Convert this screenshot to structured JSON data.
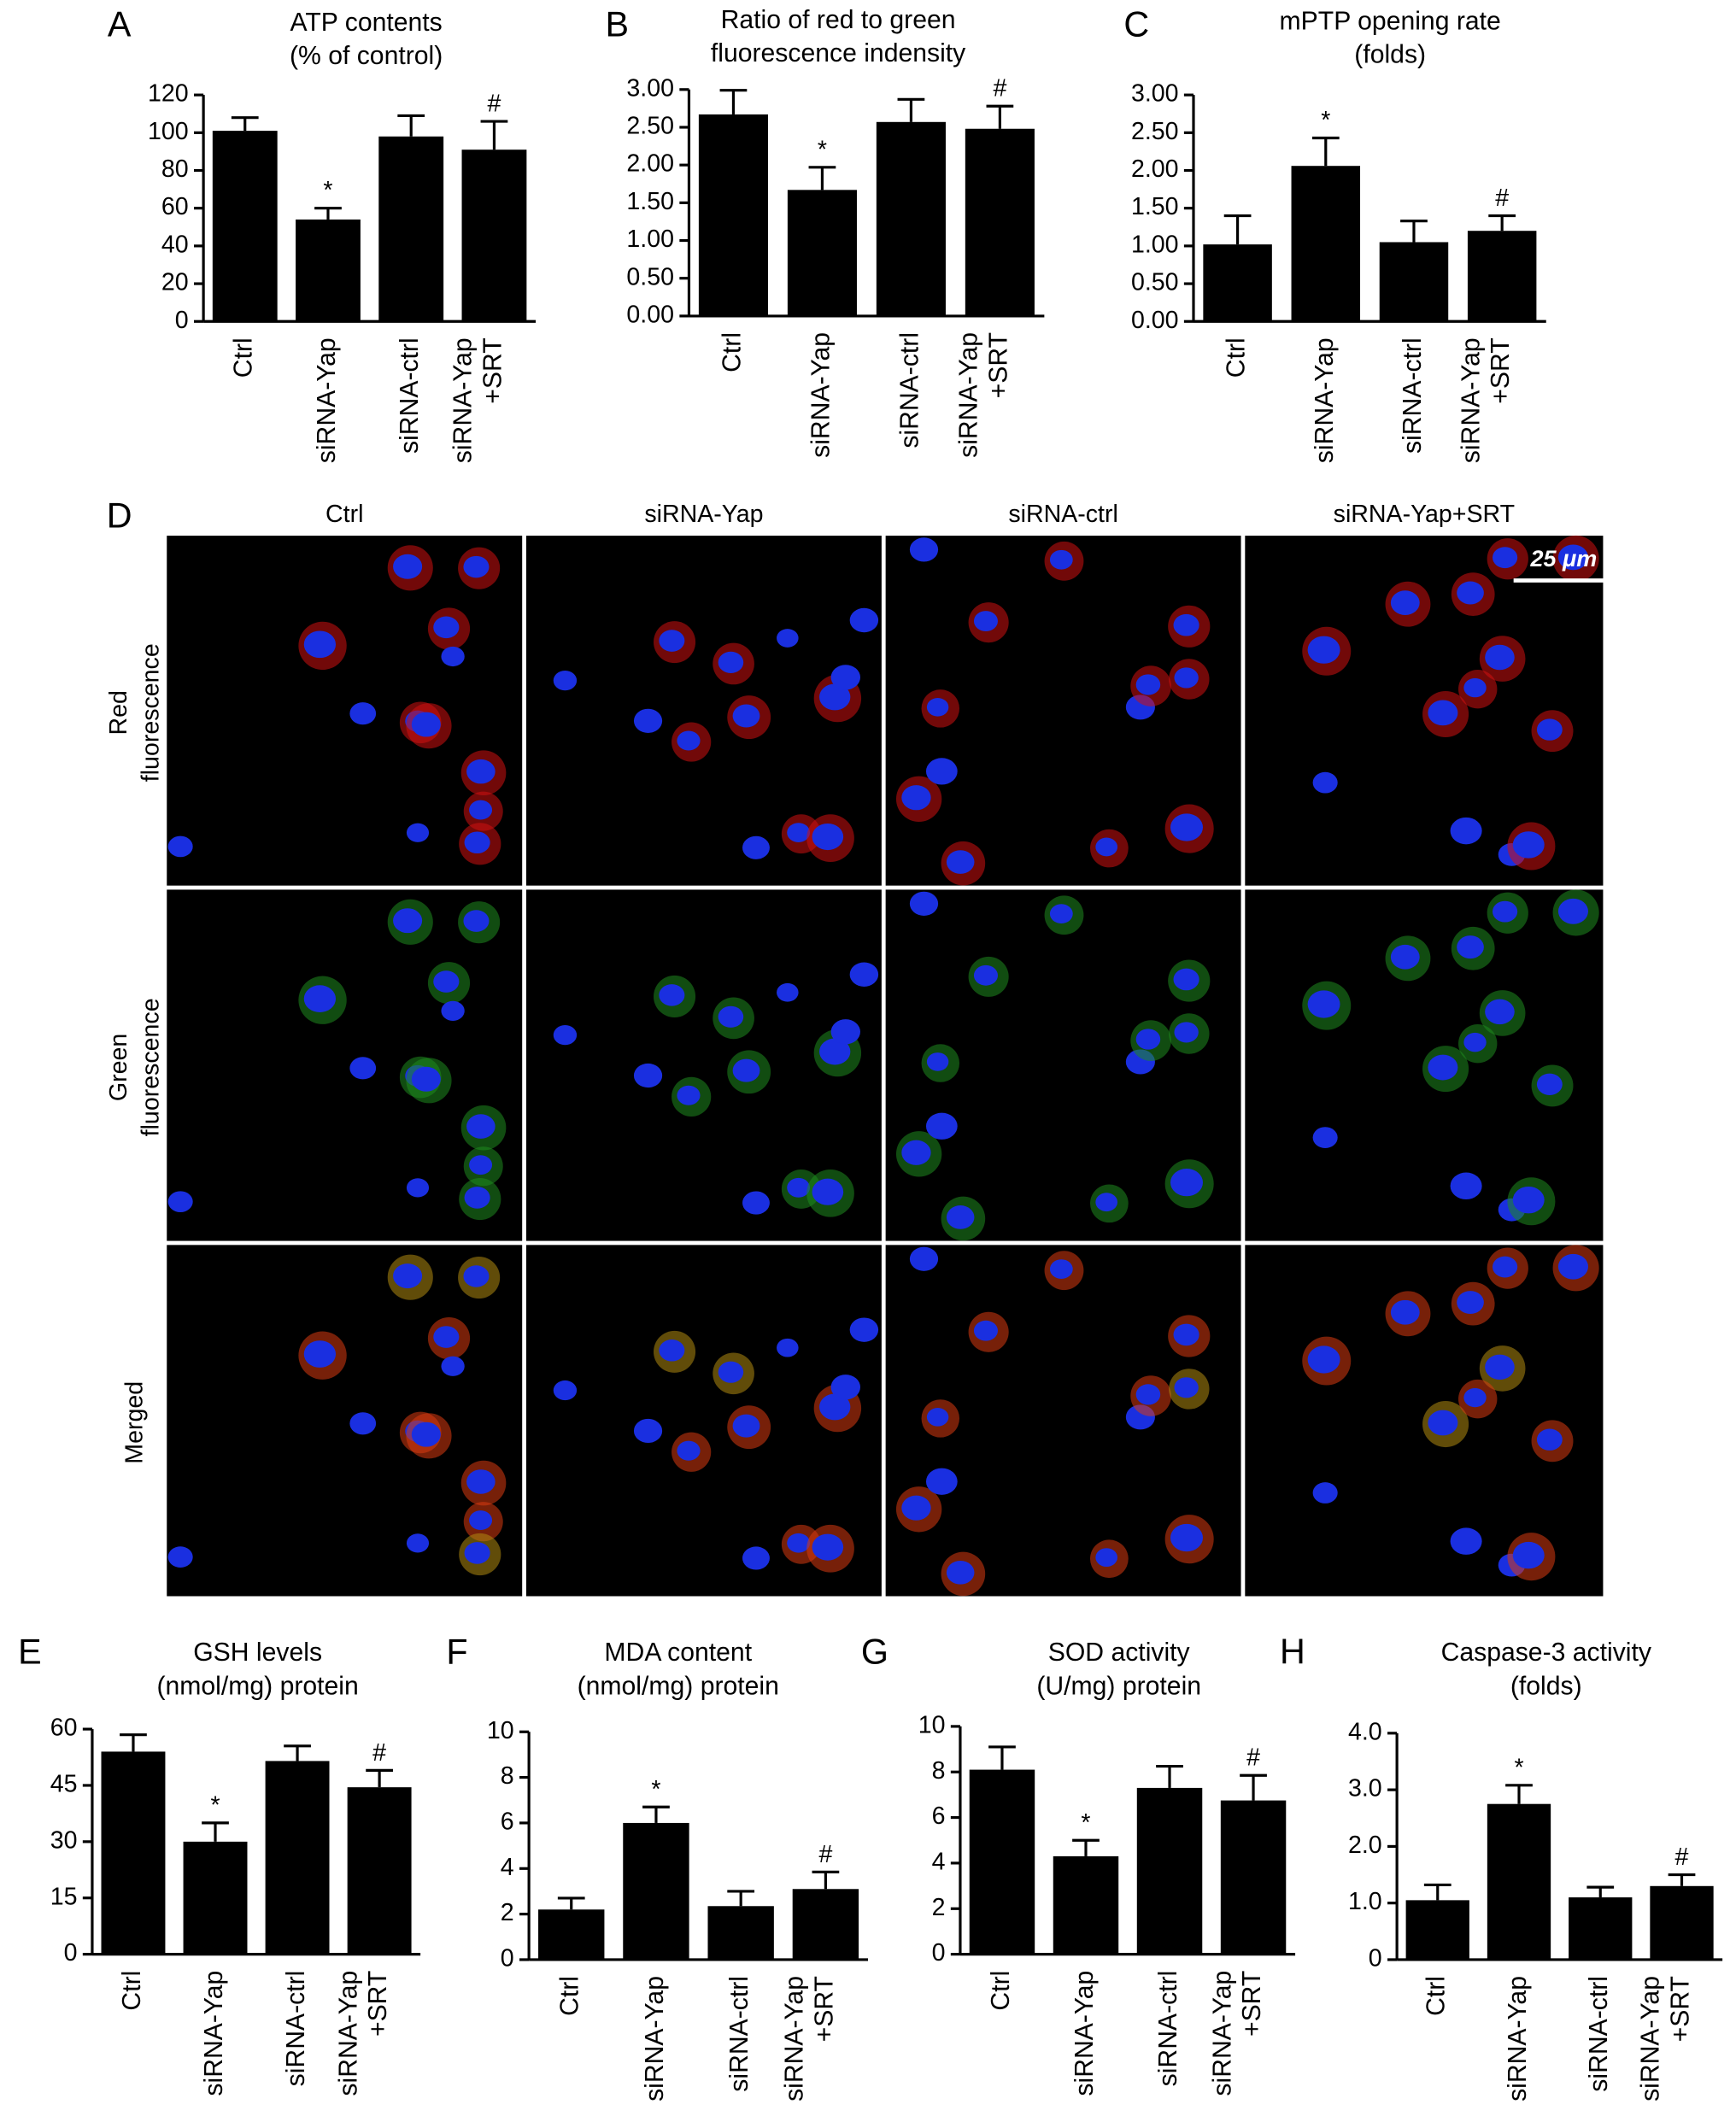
{
  "chart_data": [
    {
      "type": "bar",
      "panel": "A",
      "title": "ATP contents\n(% of control)",
      "categories": [
        "Ctrl",
        "siRNA-Yap",
        "siRNA-ctrl",
        "siRNA-Yap\n+SRT"
      ],
      "values": [
        101,
        54,
        98,
        91
      ],
      "errors": [
        7,
        6,
        11,
        15
      ],
      "annotations": [
        null,
        "*",
        null,
        "#"
      ],
      "color": "#000000",
      "ylim": [
        0,
        120
      ],
      "yticks": [
        0,
        20,
        40,
        60,
        80,
        100,
        120
      ]
    },
    {
      "type": "bar",
      "panel": "B",
      "title": "Ratio of red to green\nfluorescence indensity",
      "categories": [
        "Ctrl",
        "siRNA-Yap",
        "siRNA-ctrl",
        "siRNA-Yap\n+SRT"
      ],
      "values": [
        2.67,
        1.67,
        2.57,
        2.48
      ],
      "errors": [
        0.32,
        0.3,
        0.3,
        0.3
      ],
      "annotations": [
        null,
        "*",
        null,
        "#"
      ],
      "color": "#000000",
      "ylim": [
        0,
        3
      ],
      "yticks": [
        {
          "value": 0,
          "label": "0.00"
        },
        {
          "value": 0.5,
          "label": "0.50"
        },
        {
          "value": 1,
          "label": "1.00"
        },
        {
          "value": 1.5,
          "label": "1.50"
        },
        {
          "value": 2,
          "label": "2.00"
        },
        {
          "value": 2.5,
          "label": "2.50"
        },
        {
          "value": 3,
          "label": "3.00"
        }
      ]
    },
    {
      "type": "bar",
      "panel": "C",
      "title": "mPTP opening rate\n(folds)",
      "categories": [
        "Ctrl",
        "siRNA-Yap",
        "siRNA-ctrl",
        "siRNA-Yap\n+SRT"
      ],
      "values": [
        1.02,
        2.06,
        1.05,
        1.2
      ],
      "errors": [
        0.38,
        0.37,
        0.28,
        0.2
      ],
      "annotations": [
        null,
        "*",
        null,
        "#"
      ],
      "color": "#000000",
      "ylim": [
        0,
        3
      ],
      "yticks": [
        {
          "value": 0,
          "label": "0.00"
        },
        {
          "value": 0.5,
          "label": "0.50"
        },
        {
          "value": 1,
          "label": "1.00"
        },
        {
          "value": 1.5,
          "label": "1.50"
        },
        {
          "value": 2,
          "label": "2.00"
        },
        {
          "value": 2.5,
          "label": "2.50"
        },
        {
          "value": 3,
          "label": "3.00"
        }
      ]
    },
    {
      "type": "bar",
      "panel": "E",
      "title": "GSH levels\n(nmol/mg) protein",
      "categories": [
        "Ctrl",
        "siRNA-Yap",
        "siRNA-ctrl",
        "siRNA-Yap\n+SRT"
      ],
      "values": [
        54,
        30,
        51.5,
        44.5
      ],
      "errors": [
        4.5,
        5,
        4,
        4.5
      ],
      "annotations": [
        null,
        "*",
        null,
        "#"
      ],
      "color": "#000000",
      "ylim": [
        0,
        60
      ],
      "yticks": [
        0,
        15,
        30,
        45,
        60
      ]
    },
    {
      "type": "bar",
      "panel": "F",
      "title": "MDA content\n(nmol/mg) protein",
      "categories": [
        "Ctrl",
        "siRNA-Yap",
        "siRNA-ctrl",
        "siRNA-Yap\n+SRT"
      ],
      "values": [
        2.2,
        6.0,
        2.35,
        3.1
      ],
      "errors": [
        0.5,
        0.7,
        0.65,
        0.75
      ],
      "annotations": [
        null,
        "*",
        null,
        "#"
      ],
      "color": "#000000",
      "ylim": [
        0,
        10
      ],
      "yticks": [
        0,
        2,
        4,
        6,
        8,
        10
      ]
    },
    {
      "type": "bar",
      "panel": "G",
      "title": "SOD activity\n(U/mg) protein",
      "categories": [
        "Ctrl",
        "siRNA-Yap",
        "siRNA-ctrl",
        "siRNA-Yap\n+SRT"
      ],
      "values": [
        8.1,
        4.3,
        7.3,
        6.75
      ],
      "errors": [
        1.0,
        0.7,
        0.95,
        1.1
      ],
      "annotations": [
        null,
        "*",
        null,
        "#"
      ],
      "color": "#000000",
      "ylim": [
        0,
        10
      ],
      "yticks": [
        0,
        2,
        4,
        6,
        8,
        10
      ]
    },
    {
      "type": "bar",
      "panel": "H",
      "title": "Caspase-3 activity\n(folds)",
      "categories": [
        "Ctrl",
        "siRNA-Yap",
        "siRNA-ctrl",
        "siRNA-Yap\n+SRT"
      ],
      "values": [
        1.05,
        2.75,
        1.1,
        1.3
      ],
      "errors": [
        0.27,
        0.33,
        0.18,
        0.2
      ],
      "annotations": [
        null,
        "*",
        null,
        "#"
      ],
      "color": "#000000",
      "ylim": [
        0,
        4
      ],
      "yticks": [
        0,
        {
          "value": 1,
          "label": "1.0"
        },
        {
          "value": 2,
          "label": "2.0"
        },
        {
          "value": 3,
          "label": "3.0"
        },
        {
          "value": 4,
          "label": "4.0"
        }
      ]
    }
  ],
  "image_panel": {
    "panel": "D",
    "columns": [
      "Ctrl",
      "siRNA-Yap",
      "siRNA-ctrl",
      "siRNA-Yap+SRT"
    ],
    "rows": [
      "Red\nfluorescence",
      "Green\nfluorescence",
      "Merged"
    ],
    "scale_bar": "25 μm"
  }
}
